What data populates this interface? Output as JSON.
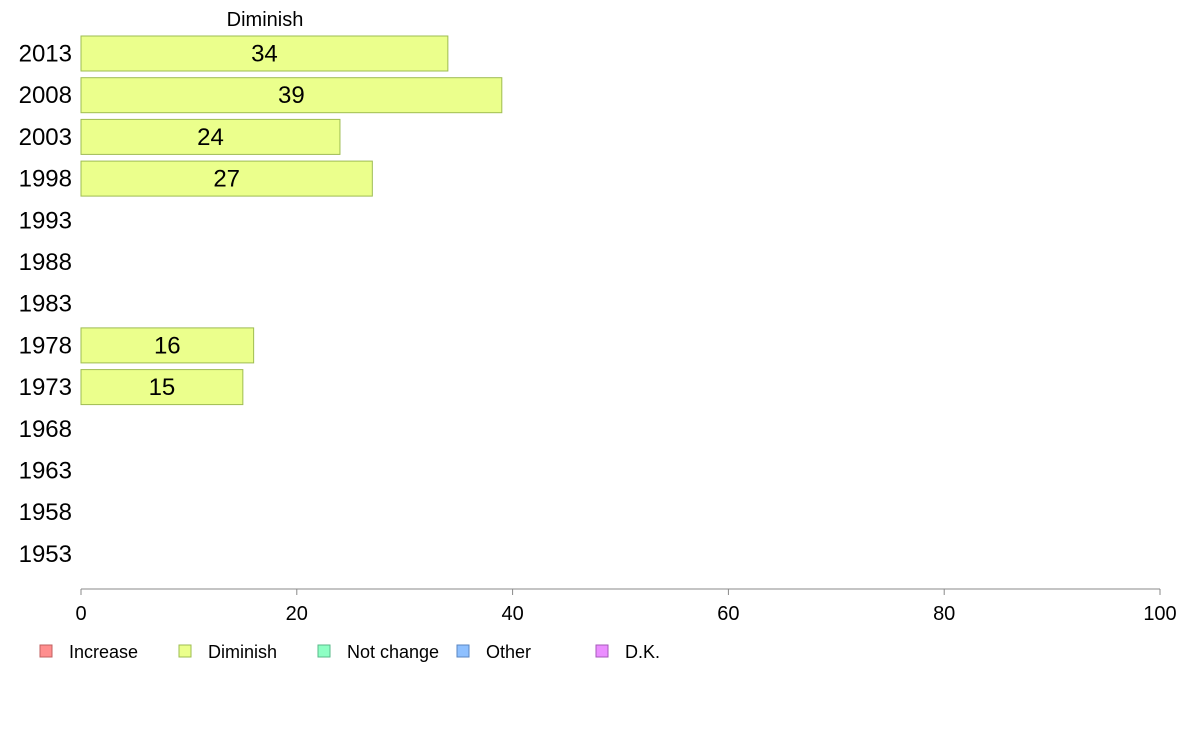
{
  "chart_data": {
    "type": "bar",
    "orientation": "horizontal",
    "title": "Diminish",
    "categories": [
      "2013",
      "2008",
      "2003",
      "1998",
      "1993",
      "1988",
      "1983",
      "1978",
      "1973",
      "1968",
      "1963",
      "1958",
      "1953"
    ],
    "series": [
      {
        "name": "Diminish",
        "values": [
          34,
          39,
          24,
          27,
          null,
          null,
          null,
          16,
          15,
          null,
          null,
          null,
          null
        ],
        "value_labels": [
          "34",
          "39",
          "24",
          "27",
          "",
          "",
          "",
          "16",
          "15",
          "",
          "",
          "",
          ""
        ],
        "color": "#ebff8c",
        "border": "#9ebc52"
      }
    ],
    "xlim": [
      0,
      100
    ],
    "x_ticks": [
      "0",
      "20",
      "40",
      "60",
      "80",
      "100"
    ],
    "grid": false,
    "legend": {
      "placement": "bottom",
      "items": [
        {
          "label": "Increase",
          "color": "#ff8e8e",
          "border": "#c06060"
        },
        {
          "label": "Diminish",
          "color": "#ebff8c",
          "border": "#9ebc52"
        },
        {
          "label": "Not change",
          "color": "#8effc4",
          "border": "#5ab88a"
        },
        {
          "label": "Other",
          "color": "#8ec0ff",
          "border": "#5a86c0"
        },
        {
          "label": "D.K.",
          "color": "#eb8eff",
          "border": "#a45ab8"
        }
      ]
    }
  }
}
